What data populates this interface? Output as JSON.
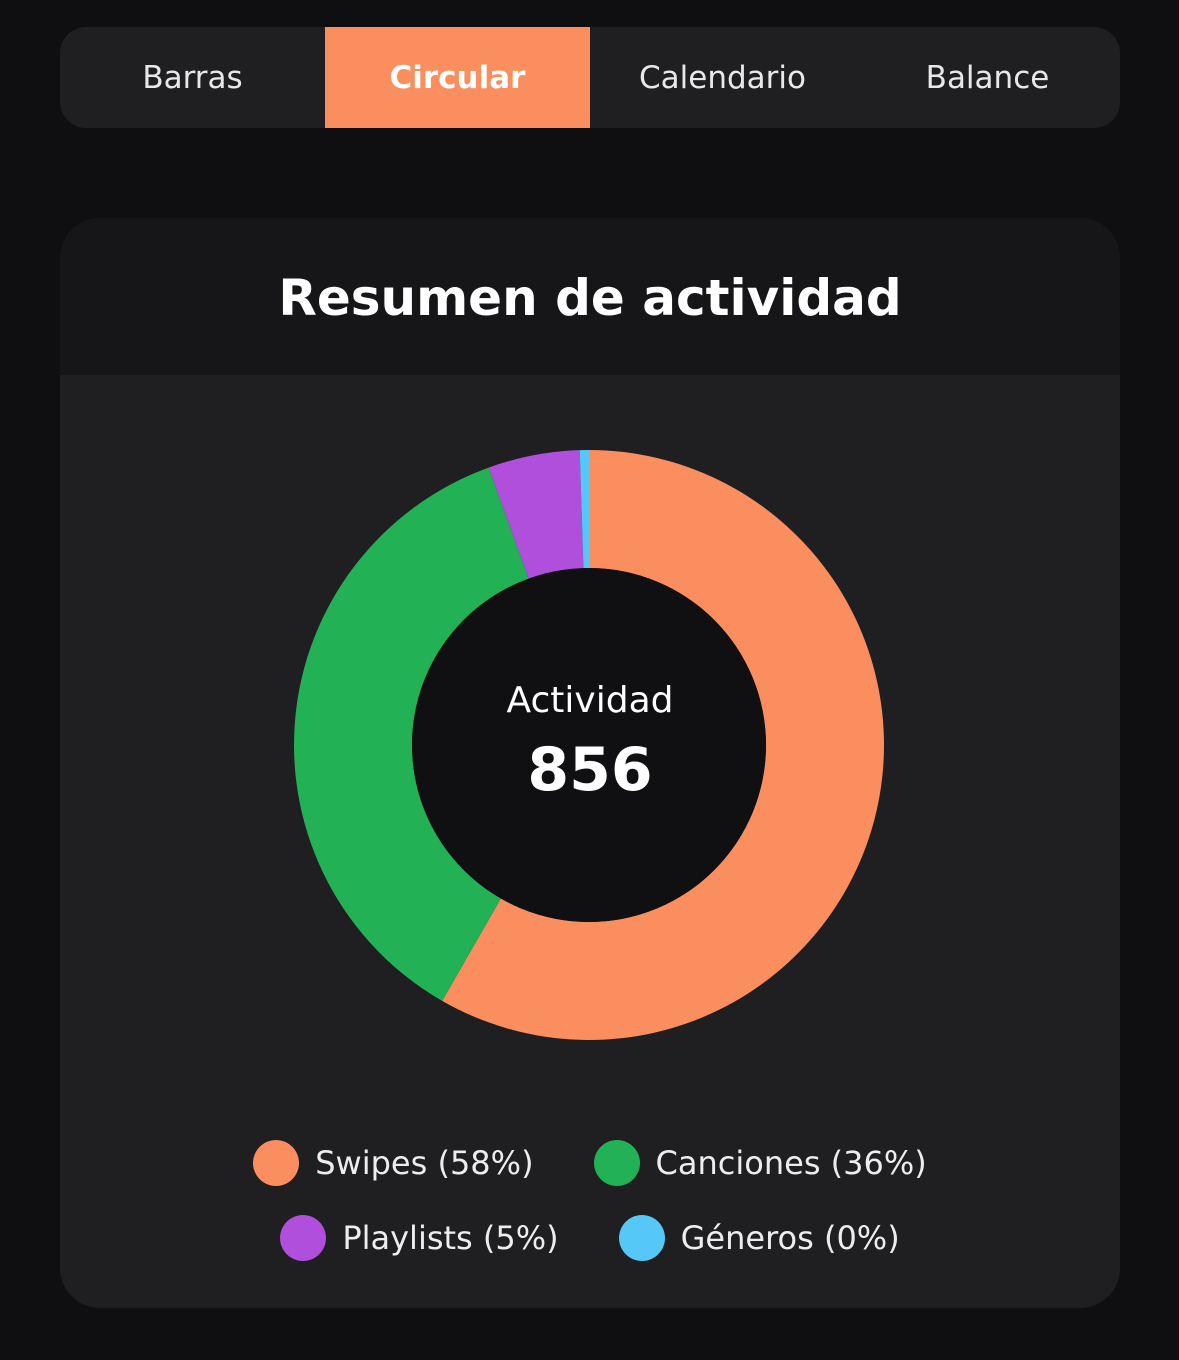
{
  "tabs": [
    {
      "label": "Barras",
      "active": false
    },
    {
      "label": "Circular",
      "active": true
    },
    {
      "label": "Calendario",
      "active": false
    },
    {
      "label": "Balance",
      "active": false
    }
  ],
  "card": {
    "title": "Resumen de actividad"
  },
  "center": {
    "label": "Actividad",
    "value": "856"
  },
  "legend": {
    "swipes": "Swipes (58%)",
    "canciones": "Canciones (36%)",
    "playlists": "Playlists (5%)",
    "generos": "Géneros (0%)"
  },
  "chart_data": {
    "type": "pie",
    "total": 856,
    "categories": [
      "Swipes",
      "Canciones",
      "Playlists",
      "Géneros"
    ],
    "values": [
      58,
      36,
      5,
      0
    ],
    "colors": [
      "#fb8e5e",
      "#22b155",
      "#b04fdc",
      "#55c8f7"
    ],
    "value_unit": "%",
    "legend_position": "bottom"
  },
  "colors": {
    "accent": "#fb8e5e",
    "background": "#0f0e10",
    "card": "#1f1e21"
  }
}
